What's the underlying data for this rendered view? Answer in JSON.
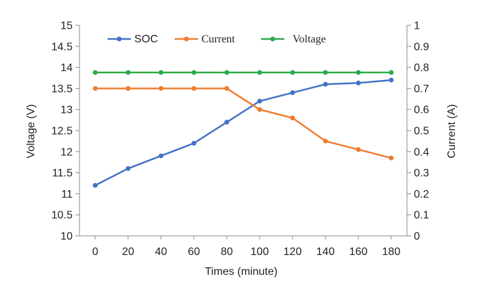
{
  "chart_data": {
    "type": "line",
    "x": [
      0,
      20,
      40,
      60,
      80,
      100,
      120,
      140,
      160,
      180
    ],
    "xlabel": "Times (minute)",
    "ylabel_left": "Voltage (V)",
    "ylabel_right": "Current (A)",
    "ylim_left": [
      10,
      15
    ],
    "ylim_right": [
      0,
      1
    ],
    "yticks_left": [
      "10",
      "10.5",
      "11",
      "11.5",
      "12",
      "12.5",
      "13",
      "13.5",
      "14",
      "14.5",
      "15"
    ],
    "yticks_right": [
      "0",
      "0.1",
      "0.2",
      "0.3",
      "0.4",
      "0.5",
      "0.6",
      "0.7",
      "0.8",
      "0.9",
      "1"
    ],
    "xticks": [
      "0",
      "20",
      "40",
      "60",
      "80",
      "100",
      "120",
      "140",
      "160",
      "180"
    ],
    "grid": false,
    "legend_position": "top",
    "series": [
      {
        "name": "SOC",
        "axis": "left",
        "color": "#4472C4",
        "values": [
          11.2,
          11.6,
          11.9,
          12.2,
          12.7,
          13.2,
          13.4,
          13.6,
          13.63,
          13.7
        ]
      },
      {
        "name": "Current",
        "axis": "left",
        "color": "#ED7D31",
        "values": [
          13.5,
          13.5,
          13.5,
          13.5,
          13.5,
          13.0,
          12.8,
          12.25,
          12.05,
          11.85
        ]
      },
      {
        "name": "Voltage",
        "axis": "left",
        "color": "#2EAA4A",
        "values": [
          13.88,
          13.88,
          13.88,
          13.88,
          13.88,
          13.88,
          13.88,
          13.88,
          13.88,
          13.88
        ]
      }
    ]
  }
}
